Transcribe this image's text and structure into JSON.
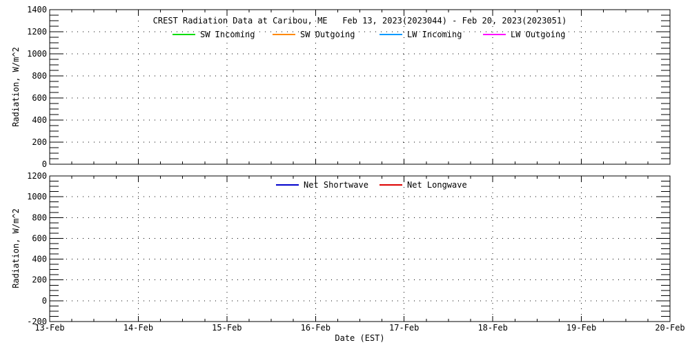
{
  "page": {
    "background": "#ffffff",
    "axis_color": "#000000",
    "text_color": "#000000"
  },
  "chart_data": [
    {
      "type": "line",
      "panel": "radiation-components-top",
      "title": "CREST Radiation Data at Caribou, ME   Feb 13, 2023(2023044) - Feb 20, 2023(2023051)",
      "ylabel": "Radiation, W/m^2",
      "xlabel": "",
      "ylim": [
        0,
        1400
      ],
      "ytick_major": 200,
      "ytick_minor": 50,
      "ytick_labels": [
        "0",
        "200",
        "400",
        "600",
        "800",
        "1000",
        "1200",
        "1400"
      ],
      "xtick_days": [
        "13-Feb",
        "14-Feb",
        "15-Feb",
        "16-Feb",
        "17-Feb",
        "18-Feb",
        "19-Feb",
        "20-Feb"
      ],
      "xtick_labels_visible": false,
      "xminor_divisions_per_day": 4,
      "grid": {
        "style": "dotted",
        "vertical": "every day",
        "horizontal": "every 200"
      },
      "legend_position": "top-inside",
      "series": [
        {
          "name": "SW Incoming",
          "color": "#00dd00",
          "x": [],
          "values": []
        },
        {
          "name": "SW Outgoing",
          "color": "#ff8800",
          "x": [],
          "values": []
        },
        {
          "name": "LW Incoming",
          "color": "#0099ff",
          "x": [],
          "values": []
        },
        {
          "name": "LW Outgoing",
          "color": "#ff00ff",
          "x": [],
          "values": []
        }
      ]
    },
    {
      "type": "line",
      "panel": "net-radiation-bottom",
      "title": "",
      "ylabel": "Radiation, W/m^2",
      "xlabel": "Date (EST)",
      "ylim": [
        -200,
        1200
      ],
      "ytick_major": 200,
      "ytick_minor": 50,
      "ytick_labels": [
        "-200",
        "0",
        "200",
        "400",
        "600",
        "800",
        "1000",
        "1200"
      ],
      "xtick_days": [
        "13-Feb",
        "14-Feb",
        "15-Feb",
        "16-Feb",
        "17-Feb",
        "18-Feb",
        "19-Feb",
        "20-Feb"
      ],
      "xtick_labels_visible": true,
      "xminor_divisions_per_day": 4,
      "grid": {
        "style": "dotted",
        "vertical": "every day",
        "horizontal": "every 200"
      },
      "legend_position": "top-inside",
      "series": [
        {
          "name": "Net Shortwave",
          "color": "#0000cc",
          "x": [],
          "values": []
        },
        {
          "name": "Net Longwave",
          "color": "#dd0000",
          "x": [],
          "values": []
        }
      ]
    }
  ]
}
